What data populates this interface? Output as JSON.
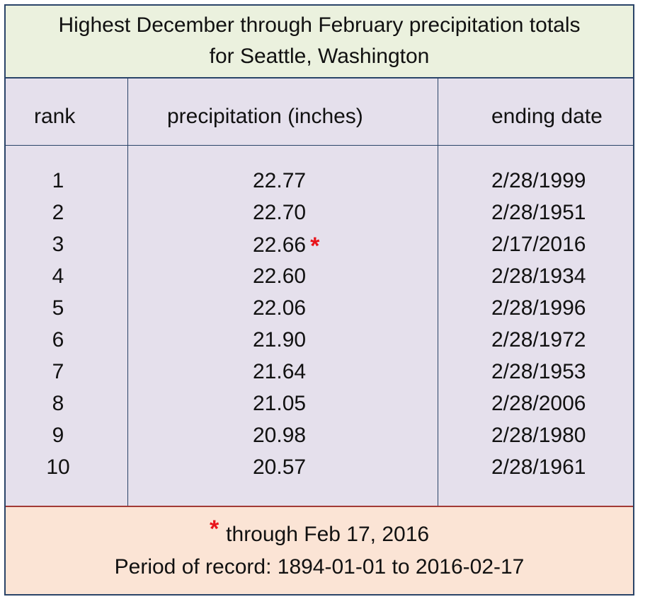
{
  "title": {
    "line1": "Highest December through February precipitation totals",
    "line2": "for Seattle, Washington"
  },
  "table": {
    "headers": {
      "rank": "rank",
      "precipitation": "precipitation (inches)",
      "ending_date": "ending date"
    },
    "rows": [
      {
        "rank": "1",
        "precipitation": "22.77",
        "ending_date": "2/28/1999"
      },
      {
        "rank": "2",
        "precipitation": "22.70",
        "ending_date": "2/28/1951"
      },
      {
        "rank": "3",
        "precipitation": "22.66",
        "ending_date": "2/17/2016",
        "marker": "*"
      },
      {
        "rank": "4",
        "precipitation": "22.60",
        "ending_date": "2/28/1934"
      },
      {
        "rank": "5",
        "precipitation": "22.06",
        "ending_date": "2/28/1996"
      },
      {
        "rank": "6",
        "precipitation": "21.90",
        "ending_date": "2/28/1972"
      },
      {
        "rank": "7",
        "precipitation": "21.64",
        "ending_date": "2/28/1953"
      },
      {
        "rank": "8",
        "precipitation": "21.05",
        "ending_date": "2/28/2006"
      },
      {
        "rank": "9",
        "precipitation": "20.98",
        "ending_date": "2/28/1980"
      },
      {
        "rank": "10",
        "precipitation": "20.57",
        "ending_date": "2/28/1961"
      }
    ]
  },
  "footer": {
    "marker": "*",
    "note": "through Feb 17, 2016",
    "period": "Period of record: 1894-01-01 to 2016-02-17"
  },
  "colors": {
    "title_bg": "#ebf1de",
    "table_bg": "#e5e0ec",
    "footer_bg": "#fbe4d5",
    "marker": "#e8141b",
    "border": "#2a4468"
  }
}
